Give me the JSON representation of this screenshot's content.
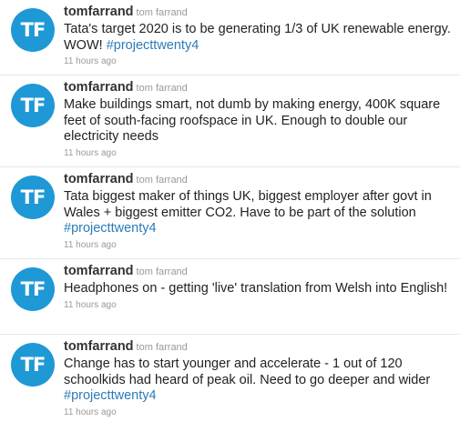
{
  "tweets": [
    {
      "screen_name": "tomfarrand",
      "full_name": "tom farrand",
      "avatar_initials": "TF",
      "text": "Tata's target 2020 is to be generating 1/3 of UK renewable energy. WOW! ",
      "hashtag": "#projecttwenty4",
      "timestamp": "11 hours ago"
    },
    {
      "screen_name": "tomfarrand",
      "full_name": "tom farrand",
      "avatar_initials": "TF",
      "text": "Make buildings smart, not dumb by making energy, 400K square feet of south-facing roofspace in UK. Enough to double our electricity needs",
      "hashtag": "",
      "timestamp": "11 hours ago"
    },
    {
      "screen_name": "tomfarrand",
      "full_name": "tom farrand",
      "avatar_initials": "TF",
      "text": "Tata biggest maker of things UK, biggest employer after govt in Wales + biggest emitter CO2. Have to be part of the solution ",
      "hashtag": "#projecttwenty4",
      "timestamp": "11 hours ago"
    },
    {
      "screen_name": "tomfarrand",
      "full_name": "tom farrand",
      "avatar_initials": "TF",
      "text": "Headphones on - getting 'live' translation from Welsh into English!",
      "hashtag": "",
      "timestamp": "11 hours ago"
    },
    {
      "screen_name": "tomfarrand",
      "full_name": "tom farrand",
      "avatar_initials": "TF",
      "text": "Change has to start younger and accelerate - 1 out of 120 schoolkids had heard of peak oil. Need to go deeper and wider ",
      "hashtag": "#projecttwenty4",
      "timestamp": "11 hours ago"
    }
  ],
  "colors": {
    "avatar_bg": "#1f98d6",
    "hashtag": "#2b7bb9",
    "divider": "#e8e8e8"
  }
}
